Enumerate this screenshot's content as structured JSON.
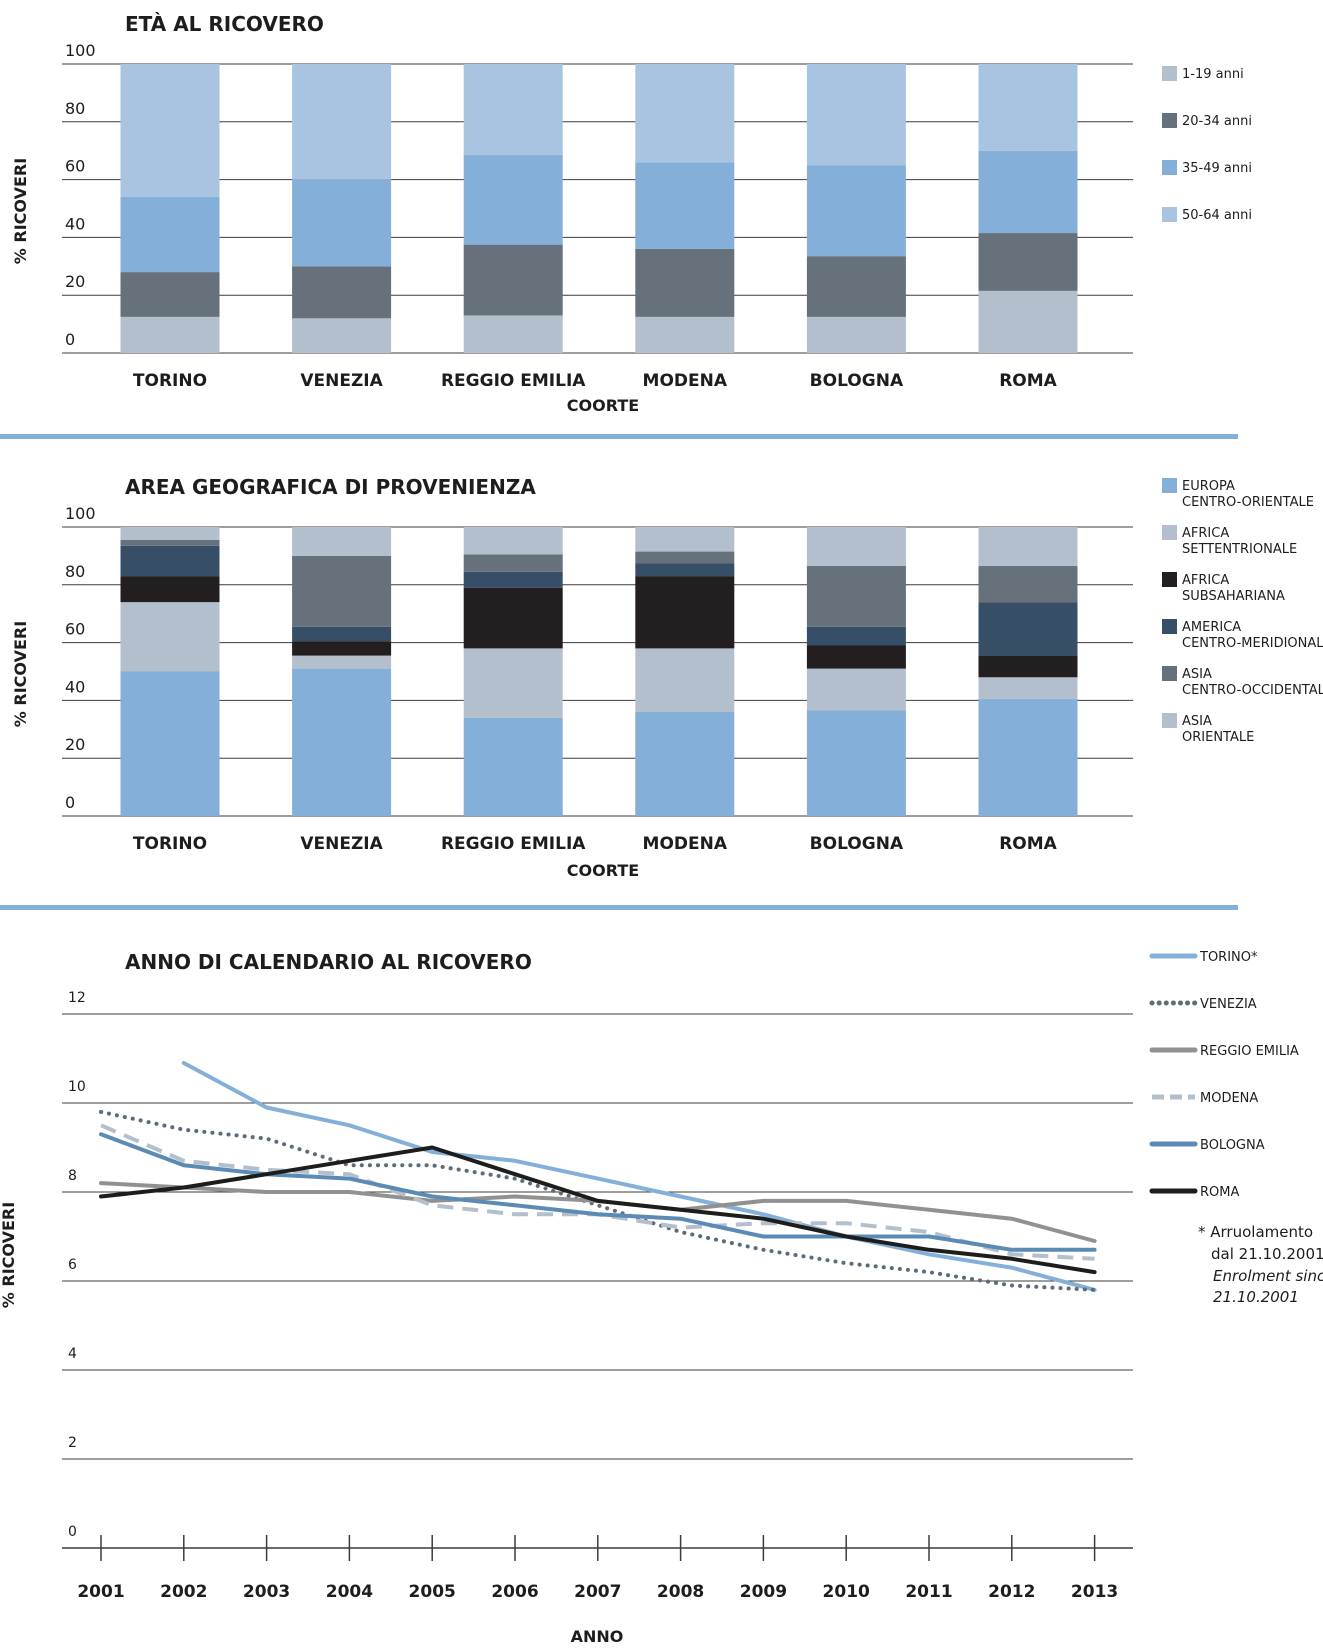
{
  "colors": {
    "age_1_19": "#b3bfcc",
    "age_20_34": "#66717c",
    "age_35_49": "#84afd8",
    "age_50_64": "#a8c4e1",
    "eu_co": "#84afd8",
    "af_sett": "#b3bfcc",
    "af_sub": "#231f20",
    "am_cm": "#374f66",
    "as_co": "#66717c",
    "as_or": "#b3bfcc",
    "divider": "#84afd8",
    "torino": "#84afd8",
    "venezia": "#5d6b7a",
    "reggio": "#919191",
    "modena": "#b3bfcc",
    "bologna": "#5b8ab4",
    "roma": "#1d1d1b"
  },
  "chart_data": [
    {
      "type": "bar",
      "stacked": true,
      "title": "ETÀ AL RICOVERO",
      "xlabel": "COORTE",
      "ylabel": "% RICOVERI",
      "ylim": [
        0,
        100
      ],
      "yticks": [
        0,
        20,
        40,
        60,
        80,
        100
      ],
      "grid": true,
      "legend_position": "right",
      "categories": [
        "TORINO",
        "VENEZIA",
        "REGGIO EMILIA",
        "MODENA",
        "BOLOGNA",
        "ROMA"
      ],
      "series": [
        {
          "name": "1-19 anni",
          "color_key": "age_1_19",
          "values": [
            12.5,
            12,
            13,
            12.5,
            12.5,
            21.5
          ]
        },
        {
          "name": "20-34 anni",
          "color_key": "age_20_34",
          "values": [
            15.5,
            18,
            24.5,
            23.5,
            21,
            20
          ]
        },
        {
          "name": "35-49 anni",
          "color_key": "age_35_49",
          "values": [
            26,
            30,
            31,
            30,
            31.5,
            28.5
          ]
        },
        {
          "name": "50-64 anni",
          "color_key": "age_50_64",
          "values": [
            46,
            40,
            31.5,
            34,
            35,
            30
          ]
        }
      ]
    },
    {
      "type": "bar",
      "stacked": true,
      "title": "AREA GEOGRAFICA DI PROVENIENZA",
      "xlabel": "COORTE",
      "ylabel": "% RICOVERI",
      "ylim": [
        0,
        100
      ],
      "yticks": [
        0,
        20,
        40,
        60,
        80,
        100
      ],
      "grid": true,
      "legend_position": "right",
      "categories": [
        "TORINO",
        "VENEZIA",
        "REGGIO EMILIA",
        "MODENA",
        "BOLOGNA",
        "ROMA"
      ],
      "series": [
        {
          "name": [
            "EUROPA",
            "CENTRO-ORIENTALE"
          ],
          "color_key": "eu_co",
          "values": [
            50,
            51,
            34,
            36,
            36.5,
            40.5
          ]
        },
        {
          "name": [
            "AFRICA",
            "SETTENTRIONALE"
          ],
          "color_key": "af_sett",
          "values": [
            24,
            4.5,
            24,
            22,
            14.5,
            7.5
          ]
        },
        {
          "name": [
            "AFRICA",
            "SUBSAHARIANA"
          ],
          "color_key": "af_sub",
          "values": [
            9,
            5,
            21,
            25,
            8,
            7.5
          ]
        },
        {
          "name": [
            "AMERICA",
            "CENTRO-MERIDIONALE"
          ],
          "color_key": "am_cm",
          "values": [
            10.5,
            5,
            5.5,
            4.5,
            6.5,
            18.5
          ]
        },
        {
          "name": [
            "ASIA",
            "CENTRO-OCCIDENTALE"
          ],
          "color_key": "as_co",
          "values": [
            2,
            24.5,
            6,
            4,
            21,
            12.5
          ]
        },
        {
          "name": [
            "ASIA",
            "ORIENTALE"
          ],
          "color_key": "as_or",
          "values": [
            4.5,
            10,
            9.5,
            8.5,
            13.5,
            13.5
          ]
        }
      ]
    },
    {
      "type": "line",
      "title": "ANNO DI CALENDARIO AL RICOVERO",
      "xlabel": "ANNO",
      "ylabel": "% RICOVERI",
      "ylim": [
        0,
        12
      ],
      "yticks": [
        0,
        2,
        4,
        6,
        8,
        10,
        12
      ],
      "grid": true,
      "legend_position": "right",
      "x": [
        "2001",
        "2002",
        "2003",
        "2004",
        "2005",
        "2006",
        "2007",
        "2008",
        "2009",
        "2010",
        "2011",
        "2012",
        "2013"
      ],
      "series": [
        {
          "name": "TORINO*",
          "color_key": "torino",
          "dash": "solid",
          "width": 4,
          "values": [
            null,
            10.9,
            9.9,
            9.5,
            8.9,
            8.7,
            8.3,
            7.9,
            7.5,
            7.0,
            6.6,
            6.3,
            5.8
          ]
        },
        {
          "name": "VENEZIA",
          "color_key": "venezia",
          "dash": "dotted",
          "width": 4,
          "values": [
            9.8,
            9.4,
            9.2,
            8.6,
            8.6,
            8.3,
            7.7,
            7.1,
            6.7,
            6.4,
            6.2,
            5.9,
            5.8
          ]
        },
        {
          "name": "REGGIO EMILIA",
          "color_key": "reggio",
          "dash": "solid",
          "width": 4,
          "values": [
            8.2,
            8.1,
            8.0,
            8.0,
            7.8,
            7.9,
            7.8,
            7.6,
            7.8,
            7.8,
            7.6,
            7.4,
            6.9
          ]
        },
        {
          "name": "MODENA",
          "color_key": "modena",
          "dash": "dashed",
          "width": 4,
          "values": [
            9.5,
            8.7,
            8.5,
            8.4,
            7.7,
            7.5,
            7.5,
            7.2,
            7.3,
            7.3,
            7.1,
            6.6,
            6.5
          ]
        },
        {
          "name": "BOLOGNA",
          "color_key": "bologna",
          "dash": "solid",
          "width": 4,
          "values": [
            9.3,
            8.6,
            8.4,
            8.3,
            7.9,
            7.7,
            7.5,
            7.4,
            7.0,
            7.0,
            7.0,
            6.7,
            6.7
          ]
        },
        {
          "name": "ROMA",
          "color_key": "roma",
          "dash": "solid",
          "width": 4,
          "values": [
            7.9,
            8.1,
            8.4,
            8.7,
            9.0,
            8.4,
            7.8,
            7.6,
            7.4,
            7.0,
            6.7,
            6.5,
            6.2
          ]
        }
      ],
      "footnote": [
        "* Arruolamento",
        "dal 21.10.2001"
      ],
      "footnote_italic": [
        "Enrolment since",
        "21.10.2001"
      ]
    }
  ]
}
